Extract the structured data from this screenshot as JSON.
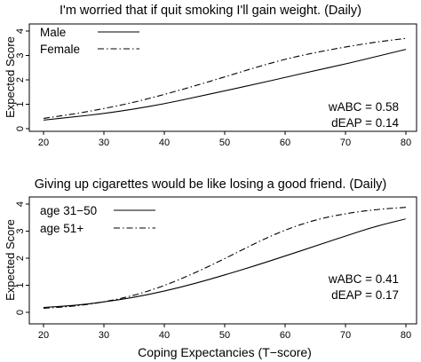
{
  "chart_data": [
    {
      "type": "line",
      "title": "I'm worried that if quit smoking I'll gain weight. (Daily)",
      "ylabel": "Expected Score",
      "xlabel": "",
      "xlim": [
        20,
        80
      ],
      "ylim": [
        0,
        4
      ],
      "xticks": [
        20,
        30,
        40,
        50,
        60,
        70,
        80
      ],
      "yticks": [
        0,
        1,
        2,
        3,
        4
      ],
      "legend": "top-left",
      "annotations": [
        "wABC = 0.58",
        "dEAP = 0.14"
      ],
      "x": [
        20,
        25,
        30,
        35,
        40,
        45,
        50,
        55,
        60,
        65,
        70,
        75,
        80
      ],
      "series": [
        {
          "name": "Male",
          "style": "solid",
          "values": [
            0.35,
            0.48,
            0.62,
            0.8,
            1.02,
            1.28,
            1.55,
            1.82,
            2.1,
            2.38,
            2.65,
            2.95,
            3.25
          ]
        },
        {
          "name": "Female",
          "style": "dashdot",
          "values": [
            0.42,
            0.6,
            0.82,
            1.08,
            1.4,
            1.75,
            2.12,
            2.5,
            2.85,
            3.12,
            3.35,
            3.55,
            3.7
          ]
        }
      ]
    },
    {
      "type": "line",
      "title": "Giving up cigarettes would be like losing a good friend. (Daily)",
      "ylabel": "Expected Score",
      "xlabel": "Coping Expectancies (T−score)",
      "xlim": [
        20,
        80
      ],
      "ylim": [
        0,
        4
      ],
      "xticks": [
        20,
        30,
        40,
        50,
        60,
        70,
        80
      ],
      "yticks": [
        0,
        1,
        2,
        3,
        4
      ],
      "legend": "top-left",
      "annotations": [
        "wABC = 0.41",
        "dEAP = 0.17"
      ],
      "x": [
        20,
        25,
        30,
        35,
        40,
        45,
        50,
        55,
        60,
        65,
        70,
        75,
        80
      ],
      "series": [
        {
          "name": "age 31−50",
          "style": "solid",
          "values": [
            0.18,
            0.25,
            0.38,
            0.55,
            0.78,
            1.06,
            1.38,
            1.72,
            2.08,
            2.45,
            2.82,
            3.18,
            3.45
          ]
        },
        {
          "name": "age 51+",
          "style": "dashdot",
          "values": [
            0.15,
            0.22,
            0.38,
            0.62,
            0.98,
            1.45,
            1.98,
            2.55,
            3.05,
            3.42,
            3.65,
            3.8,
            3.88
          ]
        }
      ]
    }
  ]
}
